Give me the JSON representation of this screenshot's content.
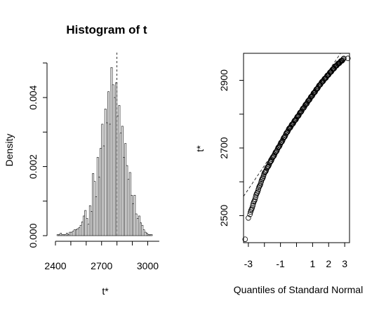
{
  "chart_data": [
    {
      "type": "bar",
      "title": "Histogram of t",
      "xlabel": "t*",
      "ylabel": "Density",
      "xlim": [
        2400,
        3080
      ],
      "ylim": [
        0,
        0.0052
      ],
      "x_ticks": [
        2400,
        2700,
        3000
      ],
      "y_ticks": [
        "0.000",
        "0.002",
        "0.004"
      ],
      "bin_width": 10,
      "bins_start": 2410,
      "values": [
        3e-05,
        3e-05,
        7e-05,
        3e-05,
        3e-05,
        3e-05,
        7e-05,
        3e-05,
        0.0001,
        0.0001,
        0.00013,
        0.00017,
        0.00017,
        0.0002,
        0.00023,
        0.0003,
        0.0004,
        0.00057,
        0.00073,
        0.0005,
        0.00033,
        0.00087,
        0.0007,
        0.0018,
        0.00157,
        0.00113,
        0.00227,
        0.0017,
        0.00253,
        0.00323,
        0.0026,
        0.00367,
        0.00327,
        0.00417,
        0.00323,
        0.00487,
        0.00437,
        0.004,
        0.00443,
        0.00347,
        0.00377,
        0.00297,
        0.00317,
        0.00227,
        0.00267,
        0.00203,
        0.00163,
        0.00183,
        0.00117,
        0.00093,
        0.00117,
        0.00063,
        0.0005,
        0.00057,
        0.00037,
        0.0003,
        0.00017,
        0.0001,
        7e-05,
        3e-05,
        3e-05,
        3e-05
      ],
      "reference_line": {
        "x": 2800,
        "style": "dashed"
      }
    },
    {
      "type": "scatter",
      "title": "",
      "xlabel": "Quantiles of Standard Normal",
      "ylabel": "t*",
      "xlim": [
        -3.3,
        3.3
      ],
      "ylim": [
        2420,
        2980
      ],
      "x_ticks": [
        "-3",
        "-1",
        "1",
        "2",
        "3"
      ],
      "y_ticks": [
        "2500",
        "2700",
        "2900"
      ],
      "points_curve": {
        "q": [
          -3.3,
          -3.0,
          -2.5,
          -2.0,
          -1.5,
          -1.0,
          -0.5,
          0.0,
          0.5,
          1.0,
          1.5,
          2.0,
          2.5,
          3.0
        ],
        "y": [
          2430,
          2490,
          2562,
          2625,
          2670,
          2712,
          2754,
          2788,
          2823,
          2857,
          2890,
          2918,
          2945,
          2966
        ]
      },
      "outliers": [
        {
          "q": -3.2,
          "y": 2430
        },
        {
          "q": -3.0,
          "y": 2493
        },
        {
          "q": 3.2,
          "y": 2965
        }
      ],
      "reference_line": {
        "intercept": 2788,
        "slope": 70,
        "style": "dashed"
      }
    }
  ]
}
